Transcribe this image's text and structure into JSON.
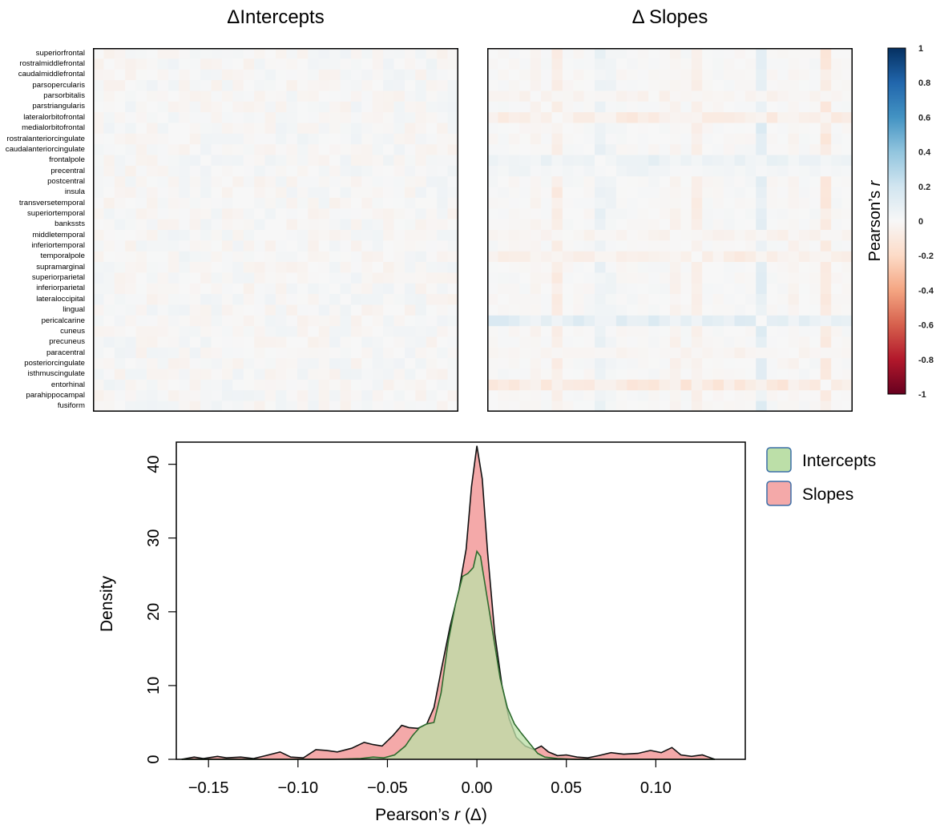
{
  "colorbar": {
    "title": "Pearson's r",
    "title_prefix": "Pearson’s ",
    "title_italic": "r",
    "ticks": [
      "1",
      "0.8",
      "0.6",
      "0.4",
      "0.2",
      "0",
      "-0.2",
      "-0.4",
      "-0.6",
      "-0.8",
      "-1"
    ],
    "colors": [
      "#67001f",
      "#b2182b",
      "#d6604d",
      "#f4a582",
      "#fddbc7",
      "#f7f7f7",
      "#d1e5f0",
      "#92c5de",
      "#4393c3",
      "#2166ac",
      "#053061"
    ]
  },
  "density_legend": {
    "items": [
      {
        "label": "Intercepts",
        "color": "#bcdfa8"
      },
      {
        "label": "Slopes",
        "color": "#f4a9a9"
      }
    ]
  },
  "chart_data": [
    {
      "type": "heatmap",
      "title": "ΔIntercepts",
      "regions": [
        "superiorfrontal",
        "rostralmiddlefrontal",
        "caudalmiddlefrontal",
        "parsopercularis",
        "parsorbitalis",
        "parstriangularis",
        "lateralorbitofrontal",
        "medialorbitofrontal",
        "rostralanteriorcingulate",
        "caudalanteriorcingulate",
        "frontalpole",
        "precentral",
        "postcentral",
        "insula",
        "transversetemporal",
        "superiortemporal",
        "bankssts",
        "middletemporal",
        "inferiortemporal",
        "temporalpole",
        "supramarginal",
        "superiorparietal",
        "inferiorparietal",
        "lateraloccipital",
        "lingual",
        "pericalcarine",
        "cuneus",
        "precuneus",
        "paracentral",
        "posteriorcingulate",
        "isthmuscingulate",
        "entorhinal",
        "parahippocampal",
        "fusiform"
      ],
      "value_range": [
        -0.05,
        0.05
      ],
      "pattern": "near-zero correlations throughout, faint mottled noise"
    },
    {
      "type": "heatmap",
      "title": "Δ Slopes",
      "regions": [
        "superiorfrontal",
        "rostralmiddlefrontal",
        "caudalmiddlefrontal",
        "parsopercularis",
        "parsorbitalis",
        "parstriangularis",
        "lateralorbitofrontal",
        "medialorbitofrontal",
        "rostralanteriorcingulate",
        "caudalanteriorcingulate",
        "frontalpole",
        "precentral",
        "postcentral",
        "insula",
        "transversetemporal",
        "superiortemporal",
        "bankssts",
        "middletemporal",
        "inferiortemporal",
        "temporalpole",
        "supramarginal",
        "superiorparietal",
        "inferiorparietal",
        "lateraloccipital",
        "lingual",
        "pericalcarine",
        "cuneus",
        "precuneus",
        "paracentral",
        "posteriorcingulate",
        "isthmuscingulate",
        "entorhinal",
        "parahippocampal",
        "fusiform"
      ],
      "value_range": [
        -0.15,
        0.12
      ],
      "stripes": [
        {
          "region": "lateralorbitofrontal",
          "value": -0.07
        },
        {
          "region": "frontalpole",
          "value": 0.06
        },
        {
          "region": "temporalpole",
          "value": -0.06
        },
        {
          "region": "pericalcarine",
          "value": 0.1
        },
        {
          "region": "entorhinal",
          "value": -0.1
        },
        {
          "region": "parsorbitalis",
          "value": -0.03
        },
        {
          "region": "middletemporal",
          "value": -0.03
        },
        {
          "region": "precentral",
          "value": 0.03
        },
        {
          "region": "paracentral",
          "value": -0.03
        }
      ],
      "pattern": "near-zero background with stripes for a few regions"
    },
    {
      "type": "area",
      "xlabel_prefix": "Pearson’s ",
      "xlabel_italic": "r",
      "xlabel_suffix": " (Δ)",
      "ylabel": "Density",
      "xlim": [
        -0.168,
        0.15
      ],
      "ylim": [
        0,
        43
      ],
      "xticks": [
        -0.15,
        -0.1,
        -0.05,
        0.0,
        0.05,
        0.1
      ],
      "xtick_labels": [
        "−0.15",
        "−0.10",
        "−0.05",
        "0.00",
        "0.05",
        "0.10"
      ],
      "yticks": [
        0,
        10,
        20,
        30,
        40
      ],
      "ytick_labels": [
        "0",
        "10",
        "20",
        "30",
        "40"
      ],
      "series": [
        {
          "name": "Slopes",
          "color": "#f4a9a9",
          "points": [
            [
              -0.165,
              0
            ],
            [
              -0.158,
              0.3
            ],
            [
              -0.153,
              0.1
            ],
            [
              -0.145,
              0.4
            ],
            [
              -0.14,
              0.2
            ],
            [
              -0.132,
              0.3
            ],
            [
              -0.125,
              0.1
            ],
            [
              -0.118,
              0.5
            ],
            [
              -0.11,
              1.0
            ],
            [
              -0.104,
              0.3
            ],
            [
              -0.097,
              0.2
            ],
            [
              -0.09,
              1.3
            ],
            [
              -0.084,
              1.2
            ],
            [
              -0.078,
              1.0
            ],
            [
              -0.07,
              1.5
            ],
            [
              -0.063,
              2.3
            ],
            [
              -0.058,
              2.0
            ],
            [
              -0.053,
              1.8
            ],
            [
              -0.047,
              3.2
            ],
            [
              -0.042,
              4.6
            ],
            [
              -0.038,
              4.3
            ],
            [
              -0.033,
              4.2
            ],
            [
              -0.028,
              4.8
            ],
            [
              -0.024,
              7.0
            ],
            [
              -0.02,
              12.0
            ],
            [
              -0.015,
              18.0
            ],
            [
              -0.01,
              23.0
            ],
            [
              -0.006,
              28.5
            ],
            [
              -0.003,
              37.0
            ],
            [
              0.0,
              42.5
            ],
            [
              0.003,
              38.0
            ],
            [
              0.006,
              28.0
            ],
            [
              0.01,
              17.0
            ],
            [
              0.014,
              10.0
            ],
            [
              0.018,
              5.5
            ],
            [
              0.022,
              3.0
            ],
            [
              0.027,
              1.8
            ],
            [
              0.032,
              1.3
            ],
            [
              0.036,
              1.8
            ],
            [
              0.04,
              1.0
            ],
            [
              0.045,
              0.5
            ],
            [
              0.05,
              0.6
            ],
            [
              0.056,
              0.3
            ],
            [
              0.062,
              0.2
            ],
            [
              0.068,
              0.5
            ],
            [
              0.075,
              0.9
            ],
            [
              0.082,
              0.7
            ],
            [
              0.09,
              0.8
            ],
            [
              0.097,
              1.2
            ],
            [
              0.103,
              0.9
            ],
            [
              0.109,
              1.6
            ],
            [
              0.114,
              0.6
            ],
            [
              0.12,
              0.4
            ],
            [
              0.126,
              0.6
            ],
            [
              0.133,
              0
            ]
          ]
        },
        {
          "name": "Intercepts",
          "color": "#bcdfa8",
          "points": [
            [
              -0.165,
              0
            ],
            [
              -0.08,
              0
            ],
            [
              -0.065,
              0.1
            ],
            [
              -0.058,
              0.3
            ],
            [
              -0.052,
              0.2
            ],
            [
              -0.046,
              0.6
            ],
            [
              -0.04,
              1.8
            ],
            [
              -0.036,
              3.2
            ],
            [
              -0.032,
              4.3
            ],
            [
              -0.028,
              4.8
            ],
            [
              -0.024,
              5.0
            ],
            [
              -0.02,
              9.0
            ],
            [
              -0.016,
              16.0
            ],
            [
              -0.012,
              21.0
            ],
            [
              -0.008,
              24.8
            ],
            [
              -0.005,
              25.2
            ],
            [
              -0.002,
              26.0
            ],
            [
              0.0,
              28.2
            ],
            [
              0.002,
              27.5
            ],
            [
              0.005,
              23.0
            ],
            [
              0.009,
              17.0
            ],
            [
              0.013,
              11.0
            ],
            [
              0.017,
              7.0
            ],
            [
              0.021,
              4.8
            ],
            [
              0.025,
              3.5
            ],
            [
              0.03,
              2.0
            ],
            [
              0.034,
              0.8
            ],
            [
              0.038,
              0.3
            ],
            [
              0.045,
              0.1
            ],
            [
              0.055,
              0
            ],
            [
              0.133,
              0
            ]
          ]
        }
      ]
    }
  ]
}
